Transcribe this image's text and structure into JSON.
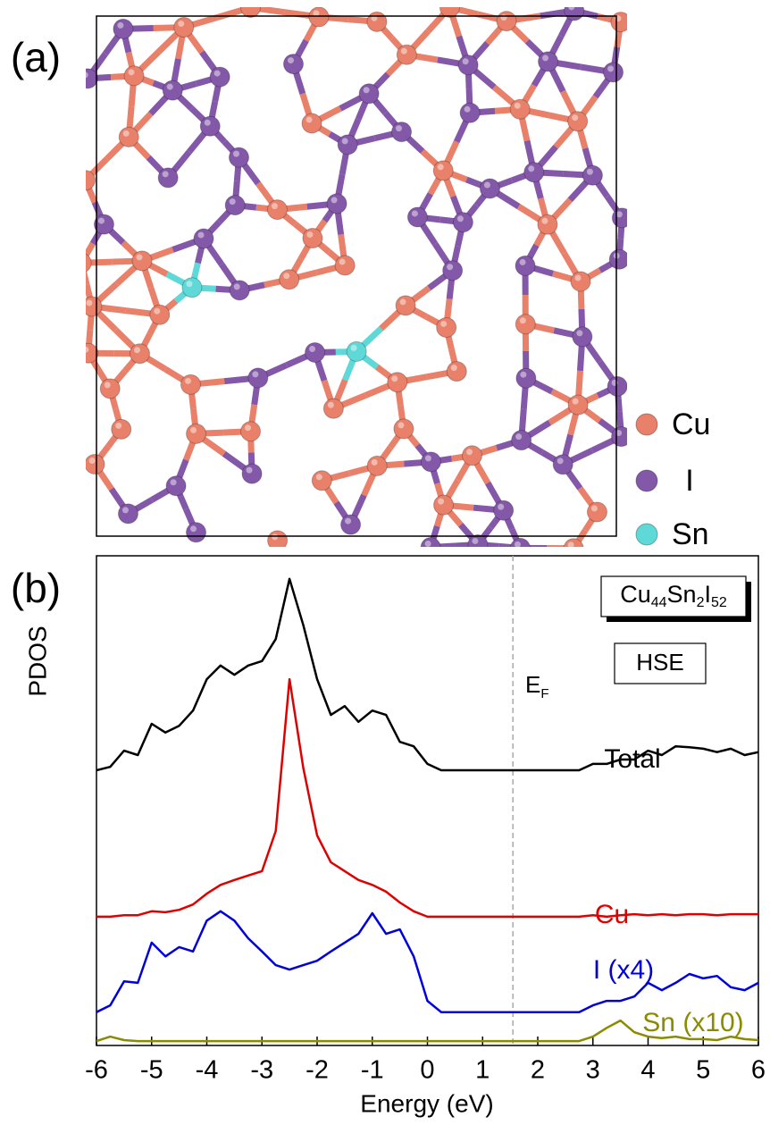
{
  "structure": {
    "panel_label": "(a)",
    "legend": [
      {
        "name": "Cu",
        "color": "#e8806a"
      },
      {
        "name": "I",
        "color": "#8458a8"
      },
      {
        "name": "Sn",
        "color": "#5fd8d8"
      }
    ]
  },
  "chart_data": {
    "type": "line",
    "panel_label": "(b)",
    "xlabel": "Energy (eV)",
    "ylabel": "PDOS",
    "xlim": [
      -6,
      6
    ],
    "xticks": [
      -6,
      -5,
      -4,
      -3,
      -2,
      -1,
      0,
      1,
      2,
      3,
      4,
      5,
      6
    ],
    "ylim": [
      0,
      10
    ],
    "composition": [
      [
        "Cu",
        "44"
      ],
      [
        "Sn",
        "2"
      ],
      [
        "I",
        "52"
      ]
    ],
    "method": "HSE",
    "fermi_label": [
      "E",
      "F"
    ],
    "fermi_energy": 1.55,
    "x": [
      -6,
      -5.75,
      -5.5,
      -5.25,
      -5,
      -4.75,
      -4.5,
      -4.25,
      -4,
      -3.75,
      -3.5,
      -3.25,
      -3,
      -2.75,
      -2.5,
      -2.25,
      -2,
      -1.75,
      -1.5,
      -1.25,
      -1,
      -0.75,
      -0.5,
      -0.25,
      0,
      0.25,
      0.5,
      0.75,
      1,
      1.25,
      1.5,
      1.75,
      2,
      2.25,
      2.5,
      2.75,
      3,
      3.25,
      3.5,
      3.75,
      4,
      4.25,
      4.5,
      4.75,
      5,
      5.25,
      5.5,
      5.75,
      6
    ],
    "series": [
      {
        "name": "Total",
        "color": "#000000",
        "values": [
          5.62,
          5.69,
          6.02,
          5.93,
          6.57,
          6.39,
          6.53,
          6.84,
          7.48,
          7.76,
          7.57,
          7.76,
          7.85,
          8.3,
          9.53,
          8.58,
          7.48,
          6.75,
          6.93,
          6.61,
          6.84,
          6.75,
          6.2,
          6.11,
          5.75,
          5.62,
          5.62,
          5.62,
          5.62,
          5.62,
          5.62,
          5.62,
          5.62,
          5.62,
          5.62,
          5.62,
          5.75,
          5.75,
          5.84,
          5.84,
          6.02,
          5.93,
          6.11,
          6.09,
          6.06,
          5.99,
          6.06,
          5.93,
          5.99
        ]
      },
      {
        "name": "Cu",
        "color": "#e00000",
        "values": [
          2.63,
          2.63,
          2.66,
          2.66,
          2.74,
          2.72,
          2.77,
          2.88,
          3.1,
          3.28,
          3.38,
          3.47,
          3.56,
          4.38,
          7.48,
          5.66,
          4.29,
          3.74,
          3.56,
          3.38,
          3.28,
          3.14,
          2.92,
          2.74,
          2.63,
          2.63,
          2.63,
          2.63,
          2.63,
          2.63,
          2.63,
          2.63,
          2.63,
          2.63,
          2.63,
          2.63,
          2.66,
          2.63,
          2.66,
          2.68,
          2.66,
          2.68,
          2.66,
          2.68,
          2.68,
          2.66,
          2.68,
          2.68,
          2.68
        ]
      },
      {
        "name": "I (x4)",
        "color": "#0000dd",
        "values": [
          0.68,
          0.82,
          1.31,
          1.28,
          2.1,
          1.82,
          2.01,
          1.92,
          2.55,
          2.74,
          2.55,
          2.19,
          1.92,
          1.64,
          1.55,
          1.64,
          1.73,
          1.92,
          2.1,
          2.28,
          2.7,
          2.28,
          2.37,
          1.82,
          0.91,
          0.68,
          0.68,
          0.68,
          0.68,
          0.68,
          0.68,
          0.68,
          0.68,
          0.68,
          0.68,
          0.68,
          0.82,
          0.91,
          0.91,
          1.0,
          1.28,
          1.13,
          1.28,
          1.46,
          1.37,
          1.42,
          1.19,
          1.13,
          1.28
        ]
      },
      {
        "name": "Sn (x10)",
        "color": "#8b8b00",
        "values": [
          0.09,
          0.18,
          0.11,
          0.09,
          0.09,
          0.09,
          0.09,
          0.09,
          0.09,
          0.09,
          0.09,
          0.09,
          0.09,
          0.09,
          0.09,
          0.09,
          0.09,
          0.09,
          0.09,
          0.09,
          0.09,
          0.09,
          0.09,
          0.09,
          0.09,
          0.09,
          0.09,
          0.09,
          0.09,
          0.09,
          0.09,
          0.09,
          0.09,
          0.09,
          0.09,
          0.09,
          0.18,
          0.36,
          0.51,
          0.27,
          0.18,
          0.15,
          0.18,
          0.13,
          0.13,
          0.11,
          0.18,
          0.13,
          0.11
        ]
      }
    ]
  }
}
